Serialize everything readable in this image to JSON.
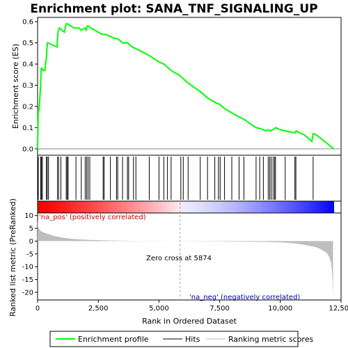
{
  "chart_data": {
    "type": "line",
    "title": "Enrichment plot: SANA_TNF_SIGNALING_UP",
    "xlabel": "Rank in Ordered Dataset",
    "xlim": [
      0,
      12500
    ],
    "x_ticks": [
      "0",
      "2,500",
      "5,000",
      "7,500",
      "10,000",
      "12,500"
    ],
    "x_tick_values": [
      0,
      2500,
      5000,
      7500,
      10000,
      12500
    ],
    "top_panel": {
      "ylabel": "Enrichment score (ES)",
      "ylim": [
        -0.03,
        0.62
      ],
      "y_ticks": [
        "0.0",
        "0.1",
        "0.2",
        "0.3",
        "0.4",
        "0.5",
        "0.6"
      ],
      "y_tick_values": [
        0.0,
        0.1,
        0.2,
        0.3,
        0.4,
        0.5,
        0.6
      ],
      "series": [
        {
          "name": "Enrichment profile",
          "color": "#00ff00",
          "x": [
            0,
            30,
            60,
            120,
            150,
            180,
            220,
            300,
            370,
            400,
            430,
            800,
            840,
            900,
            1100,
            1180,
            1220,
            1500,
            1600,
            1700,
            1800,
            1950,
            2000,
            2050,
            2100,
            2200,
            2650,
            2700,
            2800,
            3000,
            3200,
            3300,
            3500,
            3700,
            3800,
            3900,
            4100,
            4600,
            5000,
            5200,
            5400,
            5500,
            5874,
            6000,
            6200,
            6700,
            7000,
            7300,
            7500,
            7700,
            8000,
            8300,
            8500,
            8800,
            9000,
            9200,
            9400,
            9500,
            9600,
            9700,
            9800,
            10000,
            10200,
            10400,
            10600,
            10650,
            10800,
            11000,
            11300,
            11350,
            11500,
            12200
          ],
          "values": [
            0.0,
            0.19,
            0.18,
            0.29,
            0.38,
            0.38,
            0.37,
            0.37,
            0.44,
            0.5,
            0.5,
            0.48,
            0.55,
            0.57,
            0.55,
            0.59,
            0.59,
            0.57,
            0.57,
            0.57,
            0.56,
            0.57,
            0.56,
            0.58,
            0.58,
            0.57,
            0.54,
            0.54,
            0.54,
            0.53,
            0.52,
            0.52,
            0.5,
            0.5,
            0.49,
            0.48,
            0.47,
            0.44,
            0.41,
            0.4,
            0.38,
            0.37,
            0.345,
            0.33,
            0.31,
            0.27,
            0.24,
            0.22,
            0.21,
            0.19,
            0.17,
            0.15,
            0.14,
            0.115,
            0.1,
            0.095,
            0.085,
            0.09,
            0.085,
            0.09,
            0.1,
            0.09,
            0.085,
            0.08,
            0.075,
            0.085,
            0.075,
            0.065,
            0.035,
            0.072,
            0.065,
            0.0
          ]
        }
      ]
    },
    "hits": {
      "name": "Hits",
      "positions": [
        30,
        130,
        160,
        200,
        360,
        400,
        450,
        820,
        870,
        960,
        1180,
        1220,
        1260,
        1580,
        1800,
        1960,
        2020,
        2080,
        2150,
        2700,
        2740,
        3000,
        3250,
        3300,
        3500,
        3700,
        3750,
        3950,
        4050,
        4600,
        5000,
        5200,
        5350,
        5500,
        5900,
        6000,
        6200,
        6700,
        7000,
        7300,
        7450,
        7520,
        7700,
        8000,
        8300,
        8500,
        9000,
        9150,
        9300,
        9500,
        9560,
        9620,
        9700,
        9760,
        9800,
        10200,
        10600,
        10640,
        11350
      ]
    },
    "bottom_panel": {
      "ylabel": "Ranked list metric (PreRanked)",
      "ylim": [
        -23,
        11
      ],
      "y_ticks": [
        "10",
        "5",
        "0",
        "-5",
        "-10",
        "-15",
        "-20"
      ],
      "y_tick_values": [
        10,
        5,
        0,
        -5,
        -10,
        -15,
        -20
      ],
      "series": [
        {
          "name": "Ranking metric scores",
          "color": "#bebebe",
          "x": [
            0,
            20,
            50,
            100,
            200,
            300,
            500,
            700,
            1000,
            1300,
            1700,
            2200,
            3000,
            4000,
            5000,
            5874,
            6500,
            7500,
            8500,
            9500,
            10000,
            10500,
            10900,
            11200,
            11500,
            11700,
            11900,
            12000,
            12080,
            12120,
            12150,
            12170
          ],
          "values": [
            8.5,
            6.0,
            5.0,
            4.2,
            3.6,
            3.2,
            2.6,
            2.0,
            1.4,
            1.0,
            0.7,
            0.45,
            0.25,
            0.1,
            0.03,
            0.0,
            -0.05,
            -0.12,
            -0.2,
            -0.35,
            -0.5,
            -0.8,
            -1.3,
            -1.8,
            -2.5,
            -3.3,
            -4.5,
            -6.0,
            -8.0,
            -11.0,
            -16.0,
            -22.5
          ]
        }
      ]
    },
    "zero_cross": 5874,
    "annotations": {
      "pos_label": "'na_pos' (positively correlated)",
      "neg_label": "'na_neg' (negatively correlated)",
      "zero_cross_label": "Zero cross at 5874"
    },
    "legend": {
      "placement": "bottom",
      "items": [
        {
          "label": "Enrichment profile",
          "color": "#00ff00"
        },
        {
          "label": "Hits",
          "color": "#000000"
        },
        {
          "label": "Ranking metric scores",
          "color": "#bebebe"
        }
      ]
    },
    "colors": {
      "profile": "#00ff00",
      "hits": "#000000",
      "metric": "#bebebe",
      "pos": "#ff0000",
      "neg": "#0000ff"
    }
  }
}
